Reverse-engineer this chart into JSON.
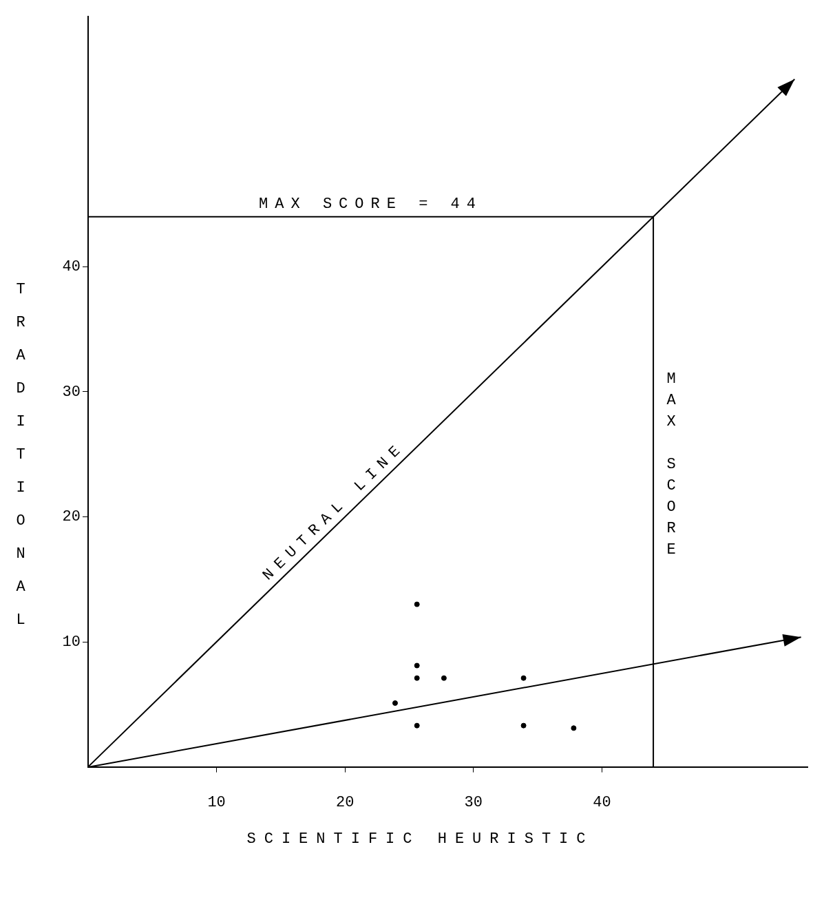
{
  "chart_data": {
    "type": "scatter",
    "xlabel": "SCIENTIFIC HEURISTIC",
    "ylabel": "TRADITIONAL",
    "xlim": [
      0,
      56
    ],
    "ylim": [
      0,
      60
    ],
    "xticks": [
      10,
      20,
      30,
      40
    ],
    "yticks": [
      10,
      20,
      30,
      40
    ],
    "grid": false,
    "legend": false,
    "marker": "circle",
    "series": [
      {
        "color": "#000000",
        "x": [
          23.9,
          25.6,
          25.6,
          25.6,
          27.7,
          33.9,
          25.6,
          33.9,
          37.8
        ],
        "values": [
          5.1,
          13.0,
          8.1,
          7.1,
          7.1,
          7.1,
          3.3,
          3.3,
          3.1
        ]
      }
    ],
    "annotations": [
      "NEUTRAL LINE"
    ],
    "ref_lines": [
      {
        "axis": "y",
        "value": 44,
        "label": "MAX SCORE = 44",
        "color": "#000000"
      },
      {
        "axis": "x",
        "value": 44,
        "label": "MAX SCORE",
        "color": "#000000"
      }
    ]
  }
}
